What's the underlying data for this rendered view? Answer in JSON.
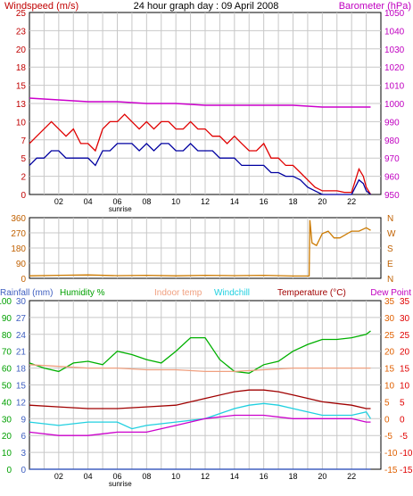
{
  "colors": {
    "wind_avg": "#0000a0",
    "wind_gust": "#e00000",
    "barometer": "#cc00cc",
    "wind_dir": "#cc7a00",
    "rainfall": "#4060c0",
    "humidity": "#00b000",
    "indoor_temp": "#f0a080",
    "windchill": "#20d0e0",
    "temperature": "#a00000",
    "dew_point": "#cc00cc",
    "grid": "#c8c8c8",
    "frame": "#000000"
  },
  "chart_data": [
    {
      "type": "line",
      "title": "24 hour graph day : 09 April 2008",
      "left_axis_label": "Windspeed (m/s)",
      "right_axis_label": "Barometer (hPa)",
      "x_ticks": [
        "02",
        "04",
        "06",
        "08",
        "10",
        "12",
        "14",
        "16",
        "18",
        "20",
        "22"
      ],
      "x_range_hours": [
        0,
        24
      ],
      "sunrise_label": "sunrise",
      "grid": true,
      "left_ylim": [
        0,
        25
      ],
      "left_ticks": [
        "0",
        "2",
        "5",
        "7",
        "10",
        "13",
        "15",
        "18",
        "20",
        "23",
        "25"
      ],
      "right_ylim": [
        948,
        1050
      ],
      "right_ticks": [
        "950",
        "960",
        "970",
        "980",
        "990",
        "1000",
        "1010",
        "1020",
        "1030",
        "1040",
        "1050"
      ],
      "series": [
        {
          "id": "gust",
          "x": [
            0,
            0.5,
            1,
            1.5,
            2,
            2.5,
            3,
            3.5,
            4,
            4.5,
            5,
            5.5,
            6,
            6.5,
            7,
            7.5,
            8,
            8.5,
            9,
            9.5,
            10,
            10.5,
            11,
            11.5,
            12,
            12.5,
            13,
            13.5,
            14,
            14.5,
            15,
            15.5,
            16,
            16.5,
            17,
            17.5,
            18,
            18.5,
            19,
            19.5,
            20,
            20.5,
            21,
            21.5,
            22,
            22.5,
            22.8,
            23,
            23.3
          ],
          "y": [
            7,
            8,
            9,
            10,
            9,
            8,
            9,
            7,
            7,
            6,
            9,
            10,
            10,
            11,
            10,
            9,
            10,
            9,
            10,
            10,
            9,
            9,
            10,
            9,
            9,
            8,
            8,
            7,
            8,
            7,
            6,
            6,
            7,
            5,
            5,
            4,
            4,
            3,
            2,
            1,
            0.5,
            0.5,
            0.5,
            0.3,
            0.3,
            3.5,
            2.5,
            1,
            0
          ]
        },
        {
          "id": "avg",
          "x": [
            0,
            0.5,
            1,
            1.5,
            2,
            2.5,
            3,
            3.5,
            4,
            4.5,
            5,
            5.5,
            6,
            6.5,
            7,
            7.5,
            8,
            8.5,
            9,
            9.5,
            10,
            10.5,
            11,
            11.5,
            12,
            12.5,
            13,
            13.5,
            14,
            14.5,
            15,
            15.5,
            16,
            16.5,
            17,
            17.5,
            18,
            18.5,
            19,
            19.5,
            20,
            20.5,
            21,
            21.5,
            22,
            22.5,
            22.8,
            23,
            23.3
          ],
          "y": [
            4,
            5,
            5,
            6,
            6,
            5,
            5,
            5,
            5,
            4,
            6,
            6,
            7,
            7,
            7,
            6,
            7,
            6,
            7,
            7,
            6,
            6,
            7,
            6,
            6,
            6,
            5,
            5,
            5,
            4,
            4,
            4,
            4,
            3,
            3,
            2.5,
            2.5,
            2,
            1,
            0.5,
            0,
            0,
            0,
            0,
            0,
            2,
            1.5,
            0.5,
            0
          ]
        },
        {
          "id": "baro",
          "axis": "right",
          "x": [
            0,
            2,
            4,
            6,
            8,
            10,
            12,
            14,
            16,
            18,
            20,
            22,
            23.3
          ],
          "y": [
            1002,
            1001,
            1000,
            1000,
            999,
            999,
            998,
            998,
            998,
            998,
            997,
            997,
            997
          ]
        }
      ]
    },
    {
      "type": "line",
      "ylim": [
        0,
        360
      ],
      "left_ticks": [
        "0",
        "90",
        "180",
        "270",
        "360"
      ],
      "right_labels": [
        "N",
        "W",
        "S",
        "E",
        "N"
      ],
      "grid": true,
      "series": [
        {
          "id": "dir",
          "x": [
            0,
            2,
            4,
            6,
            8,
            10,
            12,
            14,
            16,
            18,
            19.1,
            19.15,
            19.3,
            19.6,
            20,
            20.4,
            20.8,
            21.2,
            22,
            22.5,
            23,
            23.3
          ],
          "y": [
            15,
            18,
            20,
            16,
            18,
            15,
            18,
            16,
            18,
            14,
            14,
            345,
            210,
            195,
            265,
            280,
            240,
            240,
            280,
            280,
            300,
            285
          ]
        }
      ]
    },
    {
      "type": "line",
      "labels": {
        "rainfall": "Rainfall (mm)",
        "humidity": "Humidity %",
        "indoor": "Indoor temp",
        "windchill": "Windchill",
        "temperature": "Temperature (°C)",
        "dewpoint": "Dew Point"
      },
      "x_ticks": [
        "02",
        "04",
        "06",
        "08",
        "10",
        "12",
        "14",
        "16",
        "18",
        "20",
        "22"
      ],
      "sunrise_label": "sunrise",
      "humidity_ylim": [
        0,
        100
      ],
      "humidity_ticks": [
        "0",
        "10",
        "20",
        "30",
        "40",
        "50",
        "60",
        "70",
        "80",
        "90",
        "100"
      ],
      "rain_ylim": [
        0,
        30
      ],
      "rain_ticks": [
        "0",
        "3",
        "6",
        "9",
        "12",
        "15",
        "18",
        "21",
        "24",
        "27",
        "30"
      ],
      "temp_ylim": [
        -15,
        35
      ],
      "temp_ticks": [
        "-15",
        "-10",
        "-5",
        "0",
        "5",
        "10",
        "15",
        "20",
        "25",
        "30",
        "35"
      ],
      "grid": true,
      "series": [
        {
          "id": "humidity",
          "x": [
            0,
            1,
            2,
            3,
            4,
            5,
            6,
            7,
            8,
            9,
            10,
            11,
            12,
            13,
            14,
            15,
            16,
            17,
            18,
            19,
            20,
            21,
            22,
            23,
            23.3
          ],
          "y": [
            63,
            60,
            58,
            63,
            64,
            62,
            70,
            68,
            65,
            63,
            70,
            78,
            78,
            65,
            58,
            57,
            62,
            64,
            70,
            74,
            77,
            77,
            78,
            80,
            82
          ]
        },
        {
          "id": "indoor",
          "x": [
            0,
            2,
            4,
            6,
            8,
            10,
            12,
            14,
            16,
            18,
            20,
            22,
            23.3
          ],
          "y": [
            16,
            15.5,
            15,
            15,
            14.5,
            14.5,
            14,
            14,
            14.5,
            15,
            15,
            15,
            15
          ]
        },
        {
          "id": "temperature",
          "x": [
            0,
            2,
            4,
            6,
            8,
            10,
            12,
            14,
            15,
            16,
            17,
            18,
            20,
            22,
            23,
            23.3
          ],
          "y": [
            4,
            3.5,
            3,
            3,
            3.5,
            4,
            6,
            8,
            8.5,
            8.5,
            8,
            7,
            5,
            4,
            3,
            3
          ]
        },
        {
          "id": "windchill",
          "x": [
            0,
            2,
            4,
            6,
            7,
            8,
            10,
            12,
            14,
            15,
            16,
            17,
            18,
            19,
            20,
            21,
            22,
            23,
            23.3
          ],
          "y": [
            -1,
            -2,
            -1,
            -1,
            -3,
            -2,
            -1,
            0,
            3,
            4,
            4.5,
            4,
            3,
            2,
            1,
            1,
            1,
            2,
            0
          ]
        },
        {
          "id": "dewpoint",
          "x": [
            0,
            2,
            4,
            6,
            8,
            10,
            12,
            14,
            16,
            18,
            20,
            22,
            23,
            23.3
          ],
          "y": [
            -4,
            -5,
            -5,
            -4,
            -4,
            -2,
            0,
            1,
            1,
            0,
            0,
            0,
            -1,
            -1
          ]
        },
        {
          "id": "rain",
          "axis": "rain",
          "x": [
            0,
            23.3
          ],
          "y": [
            0,
            0
          ]
        }
      ]
    }
  ]
}
